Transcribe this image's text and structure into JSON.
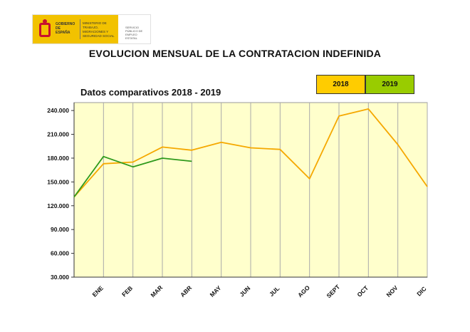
{
  "header": {
    "gobierno": "GOBIERNO DE ESPAÑA",
    "ministerio": "MINISTERIO DE TRABAJO, MIGRACIONES Y SEGURIDAD SOCIAL",
    "servicio": "SERVICIO PÚBLICO DE EMPLEO ESTATAL"
  },
  "title": "EVOLUCION MENSUAL DE LA CONTRATACION INDEFINIDA",
  "subtitle": "Datos comparativos  2018 - 2019",
  "colors": {
    "s2018": "#f5a800",
    "s2019": "#2e9a1c",
    "plot_bg": "#ffffcc",
    "legend_2018": "#ffcc00",
    "legend_2019": "#99cc00"
  },
  "chart_data": {
    "type": "line",
    "categories": [
      "",
      "ENE",
      "FEB",
      "MAR",
      "ABR",
      "MAY",
      "JUN",
      "JUL",
      "AGO",
      "SEPT",
      "OCT",
      "NOV",
      "DIC"
    ],
    "yticks": [
      "30.000",
      "60.000",
      "90.000",
      "120.000",
      "150.000",
      "180.000",
      "210.000",
      "240.000"
    ],
    "ylim": [
      30000,
      250000
    ],
    "series": [
      {
        "name": "2018",
        "values": [
          131000,
          173000,
          175000,
          194000,
          190000,
          200000,
          193000,
          191000,
          154000,
          233000,
          242000,
          197000,
          144000
        ]
      },
      {
        "name": "2019",
        "values": [
          131000,
          182000,
          169000,
          180000,
          176000,
          null,
          null,
          null,
          null,
          null,
          null,
          null,
          null
        ]
      }
    ],
    "grid": true,
    "legend_position": "top-right"
  }
}
